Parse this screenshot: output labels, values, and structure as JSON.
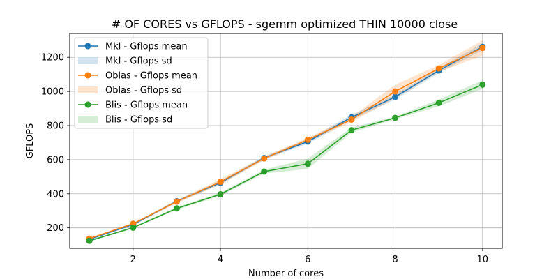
{
  "chart_data": {
    "type": "line",
    "title": "# OF CORES vs GFLOPS - sgemm  optimized THIN 10000 close",
    "xlabel": "Number of cores",
    "ylabel": "GFLOPS",
    "xlim": [
      0.55,
      10.45
    ],
    "ylim": [
      80,
      1340
    ],
    "xticks": [
      2,
      4,
      6,
      8,
      10
    ],
    "yticks": [
      200,
      400,
      600,
      800,
      1000,
      1200
    ],
    "grid": true,
    "legend_position": "top-left",
    "x": [
      1,
      2,
      3,
      4,
      5,
      6,
      7,
      8,
      9,
      10
    ],
    "series": [
      {
        "name": "Mkl - Gflops mean",
        "sd_name": "Mkl - Gflops sd",
        "color": "#1f77b4",
        "values": [
          133,
          220,
          356,
          465,
          610,
          706,
          848,
          968,
          1123,
          1262
        ],
        "sd": [
          5,
          6,
          8,
          10,
          10,
          12,
          15,
          15,
          15,
          20
        ]
      },
      {
        "name": "Oblas - Gflops mean",
        "sd_name": "Oblas - Gflops sd",
        "color": "#ff7f0e",
        "values": [
          137,
          224,
          354,
          470,
          607,
          717,
          835,
          1000,
          1135,
          1255
        ],
        "sd": [
          5,
          6,
          8,
          15,
          10,
          12,
          15,
          40,
          20,
          45
        ]
      },
      {
        "name": "Blis - Gflops mean",
        "sd_name": "Blis - Gflops sd",
        "color": "#2ca02c",
        "values": [
          124,
          201,
          314,
          397,
          530,
          576,
          773,
          845,
          933,
          1040
        ],
        "sd": [
          5,
          6,
          8,
          8,
          12,
          30,
          15,
          8,
          20,
          25
        ]
      }
    ]
  }
}
